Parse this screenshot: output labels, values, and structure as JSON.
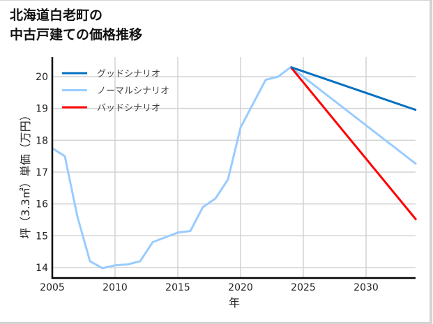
{
  "title": {
    "line1": "北海道白老町の",
    "line2": "中古戸建ての価格推移"
  },
  "chart_data": {
    "type": "line",
    "title": "北海道白老町の中古戸建ての価格推移",
    "xlabel": "年",
    "ylabel": "坪（3.3㎡）単価（万円）",
    "xlim": [
      2005,
      2034
    ],
    "ylim": [
      13.7,
      20.6
    ],
    "x_ticks": [
      "2005",
      "2010",
      "2015",
      "2020",
      "2025",
      "2030"
    ],
    "y_ticks": [
      "14",
      "15",
      "16",
      "17",
      "18",
      "19",
      "20"
    ],
    "grid": true,
    "legend_position": "upper left",
    "series": [
      {
        "name": "グッドシナリオ",
        "color": "#0070c0",
        "x": [
          2024,
          2034
        ],
        "values": [
          20.3,
          18.95
        ]
      },
      {
        "name": "ノーマルシナリオ",
        "color": "#99ccff",
        "x": [
          2005,
          2006,
          2007,
          2008,
          2009,
          2010,
          2011,
          2012,
          2013,
          2014,
          2015,
          2016,
          2017,
          2018,
          2019,
          2020,
          2021,
          2022,
          2023,
          2024,
          2034
        ],
        "values": [
          17.75,
          17.5,
          15.6,
          14.2,
          13.98,
          14.07,
          14.1,
          14.2,
          14.8,
          14.95,
          15.1,
          15.15,
          15.9,
          16.17,
          16.77,
          18.4,
          19.15,
          19.9,
          20.0,
          20.3,
          17.25
        ]
      },
      {
        "name": "バッドシナリオ",
        "color": "#ff0000",
        "x": [
          2024,
          2034
        ],
        "values": [
          20.3,
          15.5
        ]
      }
    ]
  }
}
